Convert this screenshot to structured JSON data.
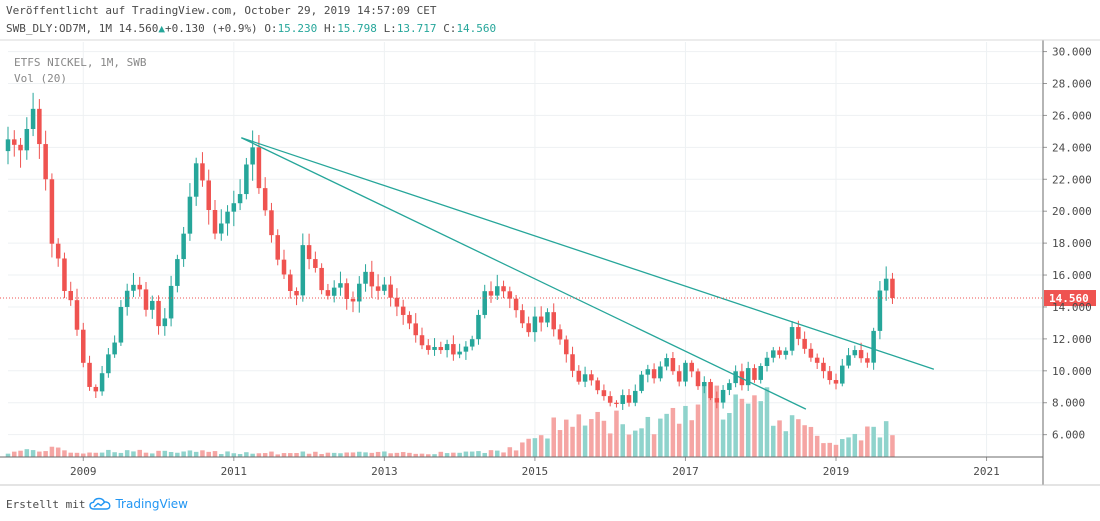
{
  "header": {
    "published": "Veröffentlicht auf TradingView.com, October 29, 2019 14:57:09 CET",
    "symbol": "SWB_DLY:OD7M, 1M",
    "last": "14.560",
    "up_arrow": "▲",
    "change": "+0.130 (+0.9%)",
    "o_label": "O:",
    "o_value": "15.230",
    "h_label": "H:",
    "h_value": "15.798",
    "l_label": "L:",
    "l_value": "13.717",
    "c_label": "C:",
    "c_value": "14.560"
  },
  "legend": {
    "instrument": "ETFS NICKEL, 1M, SWB",
    "volume": "Vol (20)"
  },
  "footer": {
    "created_with": "Erstellt mit",
    "brand": "TradingView",
    "logo_icon": "tradingview-cloud-icon"
  },
  "colors": {
    "up": "#26a69a",
    "down": "#ef5350",
    "up_volume": "#8fd3cc",
    "down_volume": "#f5a5a3",
    "trendline": "#26a69a",
    "price_line": "#ef5350",
    "price_label_bg": "#ef5350"
  },
  "chart_data": {
    "type": "candlestick",
    "timeframe": "1M",
    "x_ticks": [
      "2009",
      "2011",
      "2013",
      "2015",
      "2017",
      "2019",
      "2021"
    ],
    "y_ticks": [
      "6.000",
      "8.000",
      "10.000",
      "12.000",
      "14.000",
      "16.000",
      "18.000",
      "20.000",
      "22.000",
      "24.000",
      "26.000",
      "28.000",
      "30.000"
    ],
    "ylim": [
      4.6,
      30.6
    ],
    "xlim": [
      2008.0,
      2021.75
    ],
    "current_price": 14.56,
    "current_price_label": "14.560",
    "grid": true,
    "close_path": [
      [
        2008.0,
        24.5
      ],
      [
        2008.17,
        23.8
      ],
      [
        2008.33,
        26.5
      ],
      [
        2008.5,
        22.0
      ],
      [
        2008.58,
        18.0
      ],
      [
        2008.67,
        17.0
      ],
      [
        2008.75,
        15.0
      ],
      [
        2008.83,
        14.5
      ],
      [
        2008.92,
        12.5
      ],
      [
        2009.0,
        10.5
      ],
      [
        2009.08,
        9.0
      ],
      [
        2009.17,
        8.7
      ],
      [
        2009.33,
        11.0
      ],
      [
        2009.42,
        11.8
      ],
      [
        2009.5,
        14.0
      ],
      [
        2009.58,
        15.0
      ],
      [
        2009.67,
        15.4
      ],
      [
        2009.75,
        15.1
      ],
      [
        2009.83,
        13.8
      ],
      [
        2009.92,
        14.4
      ],
      [
        2010.0,
        12.8
      ],
      [
        2010.08,
        13.2
      ],
      [
        2010.17,
        15.4
      ],
      [
        2010.25,
        17.0
      ],
      [
        2010.33,
        18.5
      ],
      [
        2010.42,
        21.0
      ],
      [
        2010.5,
        23.0
      ],
      [
        2010.58,
        22.0
      ],
      [
        2010.67,
        20.0
      ],
      [
        2010.75,
        18.6
      ],
      [
        2010.83,
        19.2
      ],
      [
        2010.92,
        20.0
      ],
      [
        2011.0,
        20.5
      ],
      [
        2011.08,
        21.0
      ],
      [
        2011.17,
        23.0
      ],
      [
        2011.25,
        24.0
      ],
      [
        2011.33,
        21.5
      ],
      [
        2011.42,
        20.0
      ],
      [
        2011.5,
        18.5
      ],
      [
        2011.58,
        17.0
      ],
      [
        2011.67,
        16.0
      ],
      [
        2011.75,
        15.0
      ],
      [
        2011.83,
        14.6
      ],
      [
        2011.92,
        18.0
      ],
      [
        2012.0,
        17.0
      ],
      [
        2012.08,
        16.5
      ],
      [
        2012.17,
        15.0
      ],
      [
        2012.25,
        14.7
      ],
      [
        2012.33,
        15.2
      ],
      [
        2012.42,
        15.5
      ],
      [
        2012.5,
        14.5
      ],
      [
        2012.58,
        14.3
      ],
      [
        2012.67,
        15.5
      ],
      [
        2012.75,
        16.2
      ],
      [
        2012.83,
        15.3
      ],
      [
        2012.92,
        15.0
      ],
      [
        2013.0,
        15.4
      ],
      [
        2013.08,
        14.6
      ],
      [
        2013.17,
        14.0
      ],
      [
        2013.25,
        13.5
      ],
      [
        2013.33,
        13.0
      ],
      [
        2013.42,
        12.2
      ],
      [
        2013.5,
        11.6
      ],
      [
        2013.58,
        11.3
      ],
      [
        2013.67,
        11.5
      ],
      [
        2013.75,
        11.3
      ],
      [
        2013.83,
        11.7
      ],
      [
        2013.92,
        11.0
      ],
      [
        2014.0,
        11.2
      ],
      [
        2014.08,
        11.5
      ],
      [
        2014.17,
        12.0
      ],
      [
        2014.25,
        13.5
      ],
      [
        2014.33,
        15.0
      ],
      [
        2014.42,
        14.7
      ],
      [
        2014.5,
        15.3
      ],
      [
        2014.58,
        15.0
      ],
      [
        2014.67,
        14.5
      ],
      [
        2014.75,
        13.8
      ],
      [
        2014.83,
        13.0
      ],
      [
        2014.92,
        12.4
      ],
      [
        2015.0,
        13.4
      ],
      [
        2015.08,
        13.0
      ],
      [
        2015.17,
        13.7
      ],
      [
        2015.25,
        12.6
      ],
      [
        2015.33,
        12.0
      ],
      [
        2015.42,
        11.0
      ],
      [
        2015.5,
        10.0
      ],
      [
        2015.58,
        9.3
      ],
      [
        2015.67,
        9.8
      ],
      [
        2015.75,
        9.4
      ],
      [
        2015.83,
        8.8
      ],
      [
        2015.92,
        8.4
      ],
      [
        2016.0,
        8.0
      ],
      [
        2016.08,
        7.9
      ],
      [
        2016.17,
        8.5
      ],
      [
        2016.25,
        8.0
      ],
      [
        2016.33,
        8.7
      ],
      [
        2016.42,
        9.8
      ],
      [
        2016.5,
        10.1
      ],
      [
        2016.58,
        9.5
      ],
      [
        2016.67,
        10.3
      ],
      [
        2016.75,
        10.8
      ],
      [
        2016.83,
        10.0
      ],
      [
        2016.92,
        9.3
      ],
      [
        2017.0,
        10.5
      ],
      [
        2017.08,
        10.0
      ],
      [
        2017.17,
        9.0
      ],
      [
        2017.25,
        9.3
      ],
      [
        2017.33,
        8.3
      ],
      [
        2017.42,
        8.0
      ],
      [
        2017.5,
        8.8
      ],
      [
        2017.58,
        9.2
      ],
      [
        2017.67,
        10.0
      ],
      [
        2017.75,
        9.1
      ],
      [
        2017.83,
        10.2
      ],
      [
        2017.92,
        9.4
      ],
      [
        2018.0,
        10.3
      ],
      [
        2018.08,
        10.8
      ],
      [
        2018.17,
        11.3
      ],
      [
        2018.25,
        11.0
      ],
      [
        2018.33,
        11.2
      ],
      [
        2018.42,
        12.8
      ],
      [
        2018.5,
        12.0
      ],
      [
        2018.58,
        11.4
      ],
      [
        2018.67,
        10.8
      ],
      [
        2018.75,
        10.5
      ],
      [
        2018.83,
        10.0
      ],
      [
        2018.92,
        9.4
      ],
      [
        2019.0,
        9.2
      ],
      [
        2019.08,
        10.3
      ],
      [
        2019.17,
        11.0
      ],
      [
        2019.25,
        11.3
      ],
      [
        2019.33,
        10.8
      ],
      [
        2019.42,
        10.5
      ],
      [
        2019.5,
        12.5
      ],
      [
        2019.58,
        15.0
      ],
      [
        2019.67,
        15.8
      ],
      [
        2019.75,
        14.56
      ]
    ],
    "volume_profile": [
      [
        2008.0,
        0.3
      ],
      [
        2008.5,
        0.5
      ],
      [
        2009.0,
        0.3
      ],
      [
        2009.5,
        0.4
      ],
      [
        2010.0,
        0.3
      ],
      [
        2011.0,
        0.3
      ],
      [
        2012.0,
        0.25
      ],
      [
        2013.0,
        0.25
      ],
      [
        2014.0,
        0.3
      ],
      [
        2014.75,
        0.5
      ],
      [
        2015.0,
        1.3
      ],
      [
        2015.5,
        2.3
      ],
      [
        2016.0,
        2.2
      ],
      [
        2016.5,
        2.0
      ],
      [
        2017.0,
        3.3
      ],
      [
        2017.5,
        3.8
      ],
      [
        2017.83,
        5.5
      ],
      [
        2018.0,
        3.5
      ],
      [
        2018.5,
        1.8
      ],
      [
        2019.0,
        1.0
      ],
      [
        2019.5,
        2.0
      ],
      [
        2019.75,
        1.5
      ]
    ],
    "trendlines": [
      {
        "x1": 2011.1,
        "y1": 24.6,
        "x2": 2020.3,
        "y2": 10.1
      },
      {
        "x1": 2011.1,
        "y1": 24.6,
        "x2": 2018.6,
        "y2": 7.6
      }
    ]
  }
}
